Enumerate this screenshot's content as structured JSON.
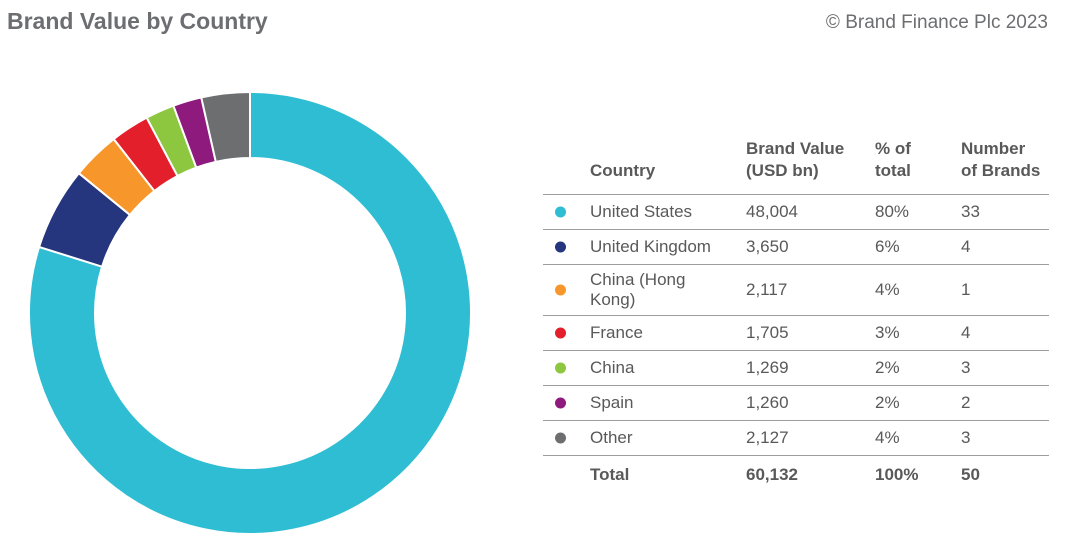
{
  "header": {
    "title": "Brand Value by Country",
    "copyright": "© Brand Finance Plc 2023"
  },
  "table": {
    "headers": {
      "country": "Country",
      "value": "Brand Value (USD bn)",
      "pct": "% of total",
      "num": "Number of Brands"
    },
    "rows": [
      {
        "country": "United States",
        "value": "48,004",
        "pct": "80%",
        "num": "33",
        "color": "#2fbdd3"
      },
      {
        "country": "United Kingdom",
        "value": "3,650",
        "pct": "6%",
        "num": "4",
        "color": "#25357e"
      },
      {
        "country": "China (Hong Kong)",
        "value": "2,117",
        "pct": "4%",
        "num": "1",
        "color": "#f7962b"
      },
      {
        "country": "France",
        "value": "1,705",
        "pct": "3%",
        "num": "4",
        "color": "#e41f2c"
      },
      {
        "country": "China",
        "value": "1,269",
        "pct": "2%",
        "num": "3",
        "color": "#8dc63f"
      },
      {
        "country": "Spain",
        "value": "1,260",
        "pct": "2%",
        "num": "2",
        "color": "#8e1a7e"
      },
      {
        "country": "Other",
        "value": "2,127",
        "pct": "4%",
        "num": "3",
        "color": "#6d6e70"
      }
    ],
    "total": {
      "label": "Total",
      "value": "60,132",
      "pct": "100%",
      "num": "50"
    }
  },
  "chart_data": {
    "type": "pie",
    "donut": true,
    "categories": [
      "United States",
      "United Kingdom",
      "China (Hong Kong)",
      "France",
      "China",
      "Spain",
      "Other"
    ],
    "values": [
      48004,
      3650,
      2117,
      1705,
      1269,
      1260,
      2127
    ],
    "colors": [
      "#2fbdd3",
      "#25357e",
      "#f7962b",
      "#e41f2c",
      "#8dc63f",
      "#8e1a7e",
      "#6d6e70"
    ],
    "title": "Brand Value by Country"
  }
}
